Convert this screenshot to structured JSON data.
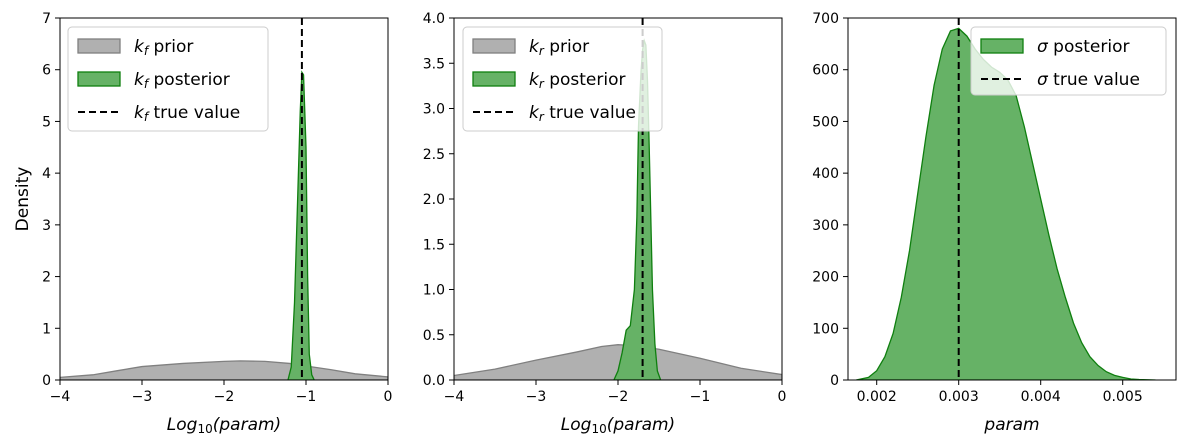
{
  "colors": {
    "prior_fill": "#b0b0b0",
    "prior_edge": "#808080",
    "posterior_fill": "#66b266",
    "posterior_edge": "#0f7f0f",
    "true_line": "#000000",
    "axis": "#000000"
  },
  "chart_data": [
    {
      "type": "area",
      "panel": "kf",
      "xlabel": "Log10(param)",
      "ylabel": "Density",
      "xlim": [
        -4,
        0
      ],
      "ylim": [
        0,
        7
      ],
      "xticks": [
        -4,
        -3,
        -2,
        -1,
        0
      ],
      "xtick_labels": [
        "−4",
        "−3",
        "−2",
        "−1",
        "0"
      ],
      "yticks": [
        0,
        1,
        2,
        3,
        4,
        5,
        6,
        7
      ],
      "ytick_labels": [
        "0",
        "1",
        "2",
        "3",
        "4",
        "5",
        "6",
        "7"
      ],
      "legend_position": "top-left",
      "legend": [
        {
          "kind": "prior",
          "symbol": "k",
          "sub": "f",
          "suffix": " prior"
        },
        {
          "kind": "posterior",
          "symbol": "k",
          "sub": "f",
          "suffix": " posterior"
        },
        {
          "kind": "true",
          "symbol": "k",
          "sub": "f",
          "suffix": " true value"
        }
      ],
      "true_value": -1.05,
      "series": [
        {
          "name": "kf prior",
          "kind": "prior",
          "x": [
            -4.0,
            -3.6,
            -3.3,
            -3.0,
            -2.5,
            -2.0,
            -1.8,
            -1.5,
            -1.2,
            -1.0,
            -0.7,
            -0.4,
            0.0
          ],
          "y": [
            0.05,
            0.1,
            0.18,
            0.26,
            0.32,
            0.36,
            0.37,
            0.36,
            0.32,
            0.27,
            0.2,
            0.12,
            0.06
          ]
        },
        {
          "name": "kf posterior",
          "kind": "posterior",
          "x": [
            -1.22,
            -1.18,
            -1.14,
            -1.1,
            -1.07,
            -1.05,
            -1.03,
            -1.0,
            -0.98,
            -0.96,
            -0.93,
            -0.9
          ],
          "y": [
            0.0,
            0.25,
            1.5,
            3.6,
            5.2,
            5.95,
            5.9,
            4.5,
            2.0,
            0.5,
            0.1,
            0.0
          ]
        }
      ]
    },
    {
      "type": "area",
      "panel": "kr",
      "xlabel": "Log10(param)",
      "ylabel": "",
      "xlim": [
        -4,
        0
      ],
      "ylim": [
        0,
        4
      ],
      "xticks": [
        -4,
        -3,
        -2,
        -1,
        0
      ],
      "xtick_labels": [
        "−4",
        "−3",
        "−2",
        "−1",
        "0"
      ],
      "yticks": [
        0,
        0.5,
        1,
        1.5,
        2,
        2.5,
        3,
        3.5,
        4
      ],
      "ytick_labels": [
        "0.0",
        "0.5",
        "1.0",
        "1.5",
        "2.0",
        "2.5",
        "3.0",
        "3.5",
        "4.0"
      ],
      "legend_position": "top-left",
      "legend": [
        {
          "kind": "prior",
          "symbol": "k",
          "sub": "r",
          "suffix": " prior"
        },
        {
          "kind": "posterior",
          "symbol": "k",
          "sub": "r",
          "suffix": " posterior"
        },
        {
          "kind": "true",
          "symbol": "k",
          "sub": "r",
          "suffix": " true value"
        }
      ],
      "true_value": -1.7,
      "series": [
        {
          "name": "kr prior",
          "kind": "prior",
          "x": [
            -4.0,
            -3.5,
            -3.0,
            -2.5,
            -2.2,
            -2.0,
            -1.8,
            -1.5,
            -1.0,
            -0.5,
            0.0
          ],
          "y": [
            0.05,
            0.12,
            0.22,
            0.31,
            0.37,
            0.39,
            0.38,
            0.34,
            0.24,
            0.13,
            0.06
          ]
        },
        {
          "name": "kr posterior",
          "kind": "posterior",
          "x": [
            -2.05,
            -2.0,
            -1.95,
            -1.9,
            -1.85,
            -1.8,
            -1.77,
            -1.75,
            -1.72,
            -1.7,
            -1.68,
            -1.66,
            -1.64,
            -1.62,
            -1.6,
            -1.58,
            -1.55,
            -1.52,
            -1.48
          ],
          "y": [
            0.0,
            0.1,
            0.3,
            0.55,
            0.6,
            1.0,
            1.8,
            2.8,
            3.4,
            3.65,
            3.75,
            3.7,
            3.3,
            2.6,
            1.8,
            1.0,
            0.4,
            0.1,
            0.0
          ]
        }
      ]
    },
    {
      "type": "area",
      "panel": "sigma",
      "xlabel": "param",
      "ylabel": "",
      "xlim": [
        0.00165,
        0.00565
      ],
      "ylim": [
        0,
        700
      ],
      "xticks": [
        0.002,
        0.003,
        0.004,
        0.005
      ],
      "xtick_labels": [
        "0.002",
        "0.003",
        "0.004",
        "0.005"
      ],
      "yticks": [
        0,
        100,
        200,
        300,
        400,
        500,
        600,
        700
      ],
      "ytick_labels": [
        "0",
        "100",
        "200",
        "300",
        "400",
        "500",
        "600",
        "700"
      ],
      "legend_position": "top-right",
      "legend": [
        {
          "kind": "posterior",
          "symbol": "σ",
          "sub": "",
          "suffix": " posterior"
        },
        {
          "kind": "true",
          "symbol": "σ",
          "sub": "",
          "suffix": " true value"
        }
      ],
      "true_value": 0.003,
      "series": [
        {
          "name": "sigma posterior",
          "kind": "posterior",
          "x": [
            0.00175,
            0.0019,
            0.002,
            0.0021,
            0.0022,
            0.0023,
            0.0024,
            0.0025,
            0.0026,
            0.0027,
            0.0028,
            0.0029,
            0.003,
            0.0031,
            0.0032,
            0.0033,
            0.0034,
            0.0035,
            0.0036,
            0.0037,
            0.0038,
            0.0039,
            0.004,
            0.0041,
            0.0042,
            0.0043,
            0.0044,
            0.0045,
            0.0046,
            0.0047,
            0.0048,
            0.0049,
            0.005,
            0.0051,
            0.0052,
            0.0054
          ],
          "y": [
            0,
            5,
            18,
            45,
            90,
            160,
            250,
            360,
            470,
            570,
            640,
            675,
            680,
            665,
            640,
            620,
            605,
            595,
            580,
            550,
            490,
            420,
            350,
            280,
            215,
            160,
            110,
            72,
            45,
            28,
            16,
            9,
            5,
            2,
            1,
            0
          ]
        }
      ]
    }
  ]
}
